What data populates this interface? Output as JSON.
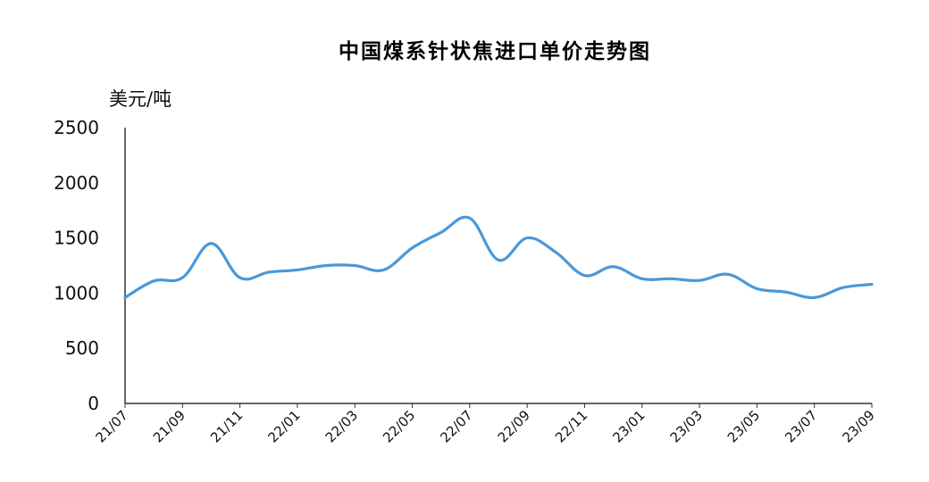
{
  "chart_data": {
    "type": "line",
    "title": "中国煤系针状焦进口单价走势图",
    "ylabel": "美元/吨",
    "xlabel": "",
    "ylim": [
      0,
      2500
    ],
    "yticks": [
      0,
      500,
      1000,
      1500,
      2000,
      2500
    ],
    "x": [
      "21/07",
      "21/08",
      "21/09",
      "21/10",
      "21/11",
      "21/12",
      "22/01",
      "22/02",
      "22/03",
      "22/04",
      "22/05",
      "22/06",
      "22/07",
      "22/08",
      "22/09",
      "22/10",
      "22/11",
      "22/12",
      "23/01",
      "23/02",
      "23/03",
      "23/04",
      "23/05",
      "23/06",
      "23/07",
      "23/08",
      "23/09"
    ],
    "x_tick_labels": [
      "21/07",
      "21/09",
      "21/11",
      "22/01",
      "22/03",
      "22/05",
      "22/07",
      "22/09",
      "22/11",
      "23/01",
      "23/03",
      "23/05",
      "23/07",
      "23/09"
    ],
    "series": [
      {
        "color": "#4a98d8",
        "values": [
          960,
          1110,
          1140,
          1450,
          1140,
          1190,
          1210,
          1250,
          1250,
          1210,
          1410,
          1550,
          1680,
          1300,
          1500,
          1370,
          1160,
          1240,
          1130,
          1130,
          1115,
          1170,
          1040,
          1010,
          960,
          1050,
          1080
        ]
      }
    ],
    "grid": false,
    "legend": "none"
  }
}
